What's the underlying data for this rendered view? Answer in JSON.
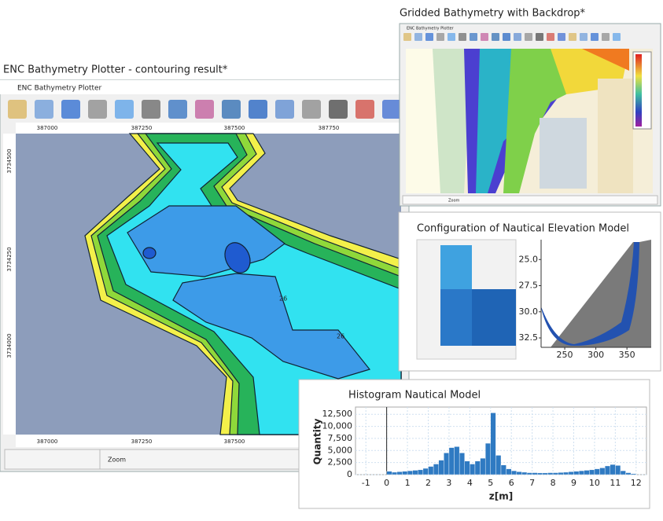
{
  "main_window": {
    "caption": "ENC Bathymetry Plotter - contouring result*",
    "title": "ENC Bathymetry Plotter",
    "x_labels_top": [
      "387000",
      "387250",
      "387500",
      "387750"
    ],
    "x_labels_bottom": [
      "387000",
      "387250",
      "387500"
    ],
    "y_labels": [
      "3734500",
      "3734250",
      "3734000"
    ],
    "contour_labels": [
      "26",
      "26"
    ],
    "status": "Zoom"
  },
  "backdrop_window": {
    "caption": "Gridded Bathymetry with Backdrop*",
    "title": "ENC Bathymetry Plotter",
    "status": "Zoom"
  },
  "nautical_model": {
    "title": "Configuration of Nautical Elevation Model",
    "profile": {
      "xlim": [
        212,
        389
      ],
      "xticks": [
        250,
        300,
        350
      ],
      "ylim": [
        23.1,
        33.4
      ],
      "yticks": [
        {
          "value": 25,
          "label": "25.0"
        },
        {
          "value": 27.5,
          "label": "27.5"
        },
        {
          "value": 30,
          "label": "30.0"
        },
        {
          "value": 32.5,
          "label": "32.5"
        }
      ]
    }
  },
  "chart_data": {
    "type": "histogram",
    "title": "Histogram Nautical Model",
    "x_label": "z[m]",
    "y_label": "Quantity",
    "color": "#2f7ac2",
    "grid": true,
    "bins": [
      0,
      0.25,
      0.5,
      0.75,
      1,
      1.25,
      1.5,
      1.75,
      2,
      2.25,
      2.5,
      2.75,
      3,
      3.25,
      3.5,
      3.75,
      4,
      4.25,
      4.5,
      4.75,
      5,
      5.25,
      5.5,
      5.75,
      6,
      6.25,
      6.5,
      6.75,
      7,
      7.25,
      7.5,
      7.75,
      8,
      8.25,
      8.5,
      8.75,
      9,
      9.25,
      9.5,
      9.75,
      10,
      10.25,
      10.5,
      10.75,
      11,
      11.25,
      11.5,
      11.75,
      12
    ],
    "values": [
      700,
      500,
      600,
      700,
      800,
      900,
      1000,
      1300,
      1700,
      2200,
      3000,
      4500,
      5600,
      5800,
      4500,
      2800,
      2200,
      2800,
      3400,
      6500,
      12800,
      4000,
      2000,
      1200,
      800,
      600,
      500,
      400,
      400,
      350,
      350,
      400,
      400,
      450,
      500,
      600,
      700,
      800,
      900,
      1000,
      1200,
      1400,
      1800,
      2100,
      1900,
      800,
      400,
      200
    ],
    "xlim": [
      -1.5,
      12.5
    ],
    "xticks": [
      -1,
      0,
      1,
      2,
      3,
      4,
      5,
      6,
      7,
      8,
      9,
      10,
      11,
      12
    ],
    "ylim": [
      0,
      14000
    ],
    "yticks": [
      0,
      {
        "value": 2500,
        "label": "2,500"
      },
      {
        "value": 5000,
        "label": "5,000"
      },
      {
        "value": 7500,
        "label": "7,500"
      },
      {
        "value": 10000,
        "label": "10,000"
      },
      {
        "value": 12500,
        "label": "12,500"
      }
    ]
  }
}
